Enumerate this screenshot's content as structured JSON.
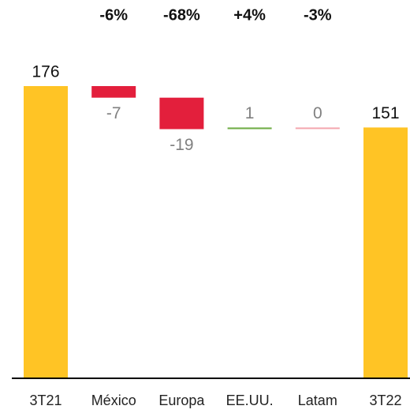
{
  "chart_data": {
    "type": "waterfall",
    "categories": [
      "3T21",
      "México",
      "Europa",
      "EE.UU.",
      "Latam",
      "3T22"
    ],
    "values": [
      176,
      -7,
      -19,
      1,
      0,
      151
    ],
    "colors": [
      "#FFC425",
      "#E31F3C",
      "#E31F3C",
      "#70AD47",
      "#F4A6AE",
      "#FFC425"
    ],
    "annotations": [
      null,
      "-6%",
      "-68%",
      "+4%",
      "-3%",
      null
    ]
  }
}
